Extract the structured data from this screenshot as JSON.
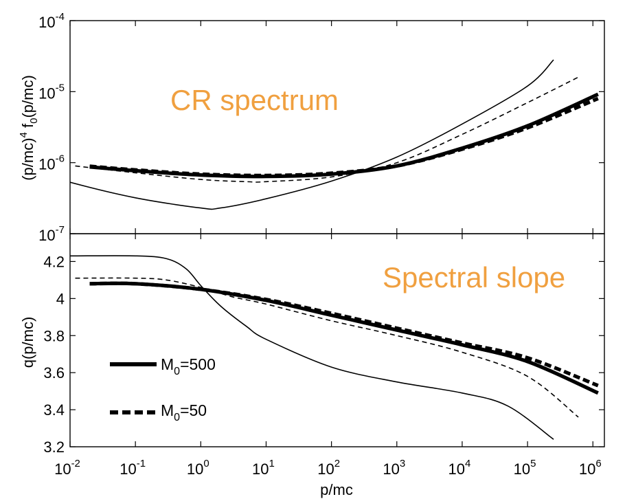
{
  "annotations": {
    "top": "CR spectrum",
    "bottom": "Spectral slope",
    "color": "#f0a040"
  },
  "legend": {
    "entries": [
      {
        "base": "M",
        "sub": "0",
        "suffix": "=500",
        "style": "solid"
      },
      {
        "base": "M",
        "sub": "0",
        "suffix": "=50",
        "style": "dashed"
      }
    ]
  },
  "chart_data": [
    {
      "type": "line",
      "panel": "top",
      "xscale": "log",
      "yscale": "log",
      "xlim": [
        0.01,
        1500000
      ],
      "ylim": [
        1e-07,
        0.0001
      ],
      "ylabel": {
        "base": "(p/mc)",
        "sup": "4",
        "mid": " f",
        "sub": "0",
        "tail": "(p/mc)"
      },
      "yticks": [
        {
          "base": "10",
          "exp": "-7",
          "value": 1e-07
        },
        {
          "base": "10",
          "exp": "-6",
          "value": 1e-06
        },
        {
          "base": "10",
          "exp": "-5",
          "value": 1e-05
        },
        {
          "base": "10",
          "exp": "-4",
          "value": 0.0001
        }
      ],
      "series": [
        {
          "style": "thin-solid",
          "x": [
            0.0015,
            0.01,
            0.1,
            1,
            2,
            10,
            100,
            1000,
            10000,
            100000,
            250000
          ],
          "y": [
            9e-07,
            5.3e-07,
            3.2e-07,
            2.3e-07,
            2.3e-07,
            3.1e-07,
            5.5e-07,
            1.2e-06,
            3.5e-06,
            1.2e-05,
            2.8e-05
          ]
        },
        {
          "style": "thin-dashed",
          "x": [
            0.012,
            0.1,
            1,
            5,
            10,
            100,
            1000,
            10000,
            100000,
            600000
          ],
          "y": [
            9e-07,
            7.2e-07,
            5.8e-07,
            5.4e-07,
            5.4e-07,
            6.3e-07,
            1e-06,
            2.5e-06,
            7e-06,
            1.6e-05
          ]
        },
        {
          "style": "thick-solid",
          "x": [
            0.02,
            0.1,
            1,
            10,
            100,
            1000,
            10000,
            100000,
            1200000
          ],
          "y": [
            8.7e-07,
            7.7e-07,
            6.7e-07,
            6.4e-07,
            6.9e-07,
            9e-07,
            1.6e-06,
            3.3e-06,
            9.2e-06
          ]
        },
        {
          "style": "thick-dashed",
          "x": [
            0.02,
            0.1,
            1,
            10,
            100,
            1000,
            10000,
            100000,
            1200000
          ],
          "y": [
            8.9e-07,
            7.9e-07,
            6.9e-07,
            6.6e-07,
            7.1e-07,
            9e-07,
            1.55e-06,
            3.1e-06,
            8e-06
          ]
        }
      ]
    },
    {
      "type": "line",
      "panel": "bottom",
      "xscale": "log",
      "yscale": "linear",
      "xlim": [
        0.01,
        1500000
      ],
      "ylim": [
        3.2,
        4.35
      ],
      "xlabel": "p/mc",
      "ylabel": "q(p/mc)",
      "yticks": [
        "3.2",
        "3.4",
        "3.6",
        "3.8",
        "4",
        "4.2"
      ],
      "xticks": [
        {
          "base": "10",
          "exp": "-2",
          "value": 0.01
        },
        {
          "base": "10",
          "exp": "-1",
          "value": 0.1
        },
        {
          "base": "10",
          "exp": "0",
          "value": 1
        },
        {
          "base": "10",
          "exp": "1",
          "value": 10
        },
        {
          "base": "10",
          "exp": "2",
          "value": 100
        },
        {
          "base": "10",
          "exp": "3",
          "value": 1000
        },
        {
          "base": "10",
          "exp": "4",
          "value": 10000
        },
        {
          "base": "10",
          "exp": "5",
          "value": 100000
        },
        {
          "base": "10",
          "exp": "6",
          "value": 1000000
        }
      ],
      "series": [
        {
          "style": "thin-solid",
          "x": [
            0.0015,
            0.01,
            0.1,
            0.3,
            0.6,
            1,
            2,
            5,
            10,
            100,
            1000,
            10000,
            50000,
            250000
          ],
          "y": [
            4.23,
            4.23,
            4.23,
            4.215,
            4.16,
            4.07,
            3.96,
            3.85,
            3.78,
            3.63,
            3.55,
            3.49,
            3.42,
            3.24
          ]
        },
        {
          "style": "thin-dashed",
          "x": [
            0.012,
            0.1,
            0.3,
            1,
            3,
            10,
            100,
            1000,
            10000,
            100000,
            600000
          ],
          "y": [
            4.11,
            4.11,
            4.1,
            4.06,
            4.01,
            3.97,
            3.88,
            3.8,
            3.71,
            3.58,
            3.36
          ]
        },
        {
          "style": "thick-solid",
          "x": [
            0.02,
            0.1,
            1,
            10,
            100,
            1000,
            10000,
            100000,
            1200000
          ],
          "y": [
            4.08,
            4.08,
            4.05,
            3.99,
            3.91,
            3.83,
            3.75,
            3.66,
            3.49
          ]
        },
        {
          "style": "thick-dashed",
          "x": [
            0.02,
            0.1,
            1,
            10,
            100,
            1000,
            10000,
            100000,
            1200000
          ],
          "y": [
            4.08,
            4.08,
            4.05,
            3.995,
            3.92,
            3.84,
            3.76,
            3.68,
            3.53
          ]
        }
      ]
    }
  ]
}
